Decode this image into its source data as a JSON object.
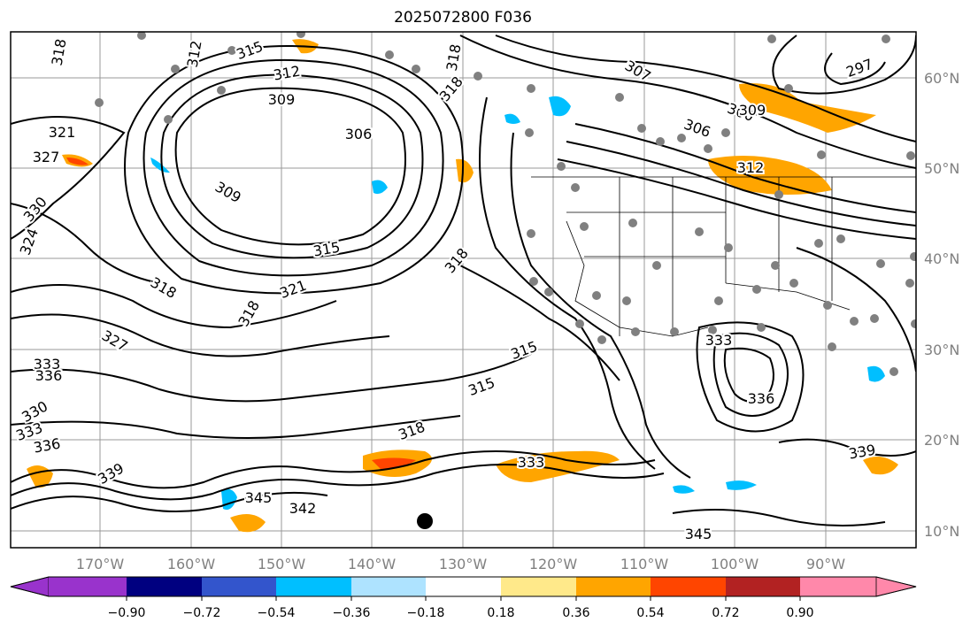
{
  "title": "2025072800 F036",
  "lon_labels": [
    "170°W",
    "160°W",
    "150°W",
    "140°W",
    "130°W",
    "120°W",
    "110°W",
    "100°W",
    "90°W"
  ],
  "lat_labels": [
    "60°N",
    "50°N",
    "40°N",
    "30°N",
    "20°N",
    "10°N"
  ],
  "colorbar": {
    "ticks": [
      "−0.90",
      "−0.72",
      "−0.54",
      "−0.36",
      "−0.18",
      "0.18",
      "0.36",
      "0.54",
      "0.72",
      "0.90"
    ],
    "colors": [
      "#9933cc",
      "#000080",
      "#3355cc",
      "#00bfff",
      "#aee3ff",
      "#ffffff",
      "#ffe98a",
      "#ffa500",
      "#ff4500",
      "#b22222",
      "#ff88aa"
    ]
  },
  "contour_labels": [
    "318",
    "312",
    "315",
    "312",
    "318",
    "318",
    "307",
    "297",
    "300",
    "306",
    "309",
    "312",
    "321",
    "306",
    "327",
    "309",
    "315",
    "318",
    "318",
    "321",
    "324",
    "330",
    "318",
    "315",
    "315",
    "309",
    "333",
    "336",
    "327",
    "330",
    "333",
    "336",
    "339",
    "345",
    "342",
    "318",
    "333",
    "339",
    "345",
    "333",
    "336"
  ]
}
